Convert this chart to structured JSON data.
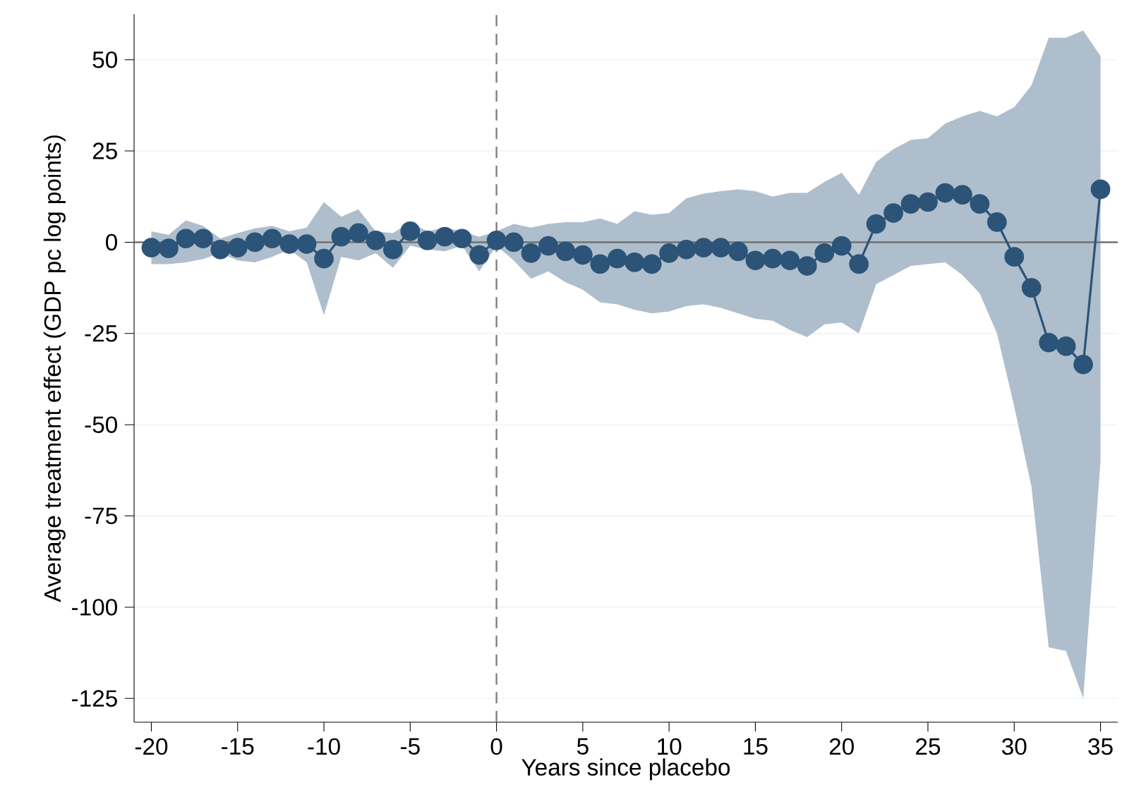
{
  "chart_data": {
    "type": "line",
    "xlabel": "Years since placebo",
    "ylabel": "Average treatment effect (GDP pc log points)",
    "xlim": [
      -21,
      36
    ],
    "ylim": [
      -131.5,
      62.5
    ],
    "xticks": [
      -20,
      -15,
      -10,
      -5,
      0,
      5,
      10,
      15,
      20,
      25,
      30,
      35
    ],
    "yticks": [
      50,
      25,
      0,
      -25,
      -50,
      -75,
      -100,
      -125
    ],
    "grid": "y",
    "marker": "circle",
    "line_style": "solid",
    "x": [
      -20,
      -19,
      -18,
      -17,
      -16,
      -15,
      -14,
      -13,
      -12,
      -11,
      -10,
      -9,
      -8,
      -7,
      -6,
      -5,
      -4,
      -3,
      -2,
      -1,
      0,
      1,
      2,
      3,
      4,
      5,
      6,
      7,
      8,
      9,
      10,
      11,
      12,
      13,
      14,
      15,
      16,
      17,
      18,
      19,
      20,
      21,
      22,
      23,
      24,
      25,
      26,
      27,
      28,
      29,
      30,
      31,
      32,
      33,
      34,
      35
    ],
    "series": [
      {
        "color": "#2c5478",
        "values": [
          -1.5,
          -1.7,
          1,
          1,
          -2,
          -1.5,
          0,
          1,
          -0.5,
          -0.5,
          -4.5,
          1.5,
          2.5,
          0.5,
          -2,
          3,
          0.5,
          1.5,
          1,
          -3.5,
          0.5,
          0,
          -3,
          -1,
          -2.5,
          -3.5,
          -6,
          -4.5,
          -5.5,
          -6,
          -3,
          -2,
          -1.5,
          -1.5,
          -2.5,
          -5,
          -4.5,
          -5,
          -6.5,
          -3,
          -1,
          -6,
          5,
          8,
          10.5,
          11,
          13.5,
          13,
          10.5,
          5.5,
          -4,
          -12.5,
          -27.5,
          -28.5,
          -33.5,
          14.5
        ],
        "upper": [
          3,
          2,
          6,
          4.5,
          1,
          2.5,
          3.8,
          4.5,
          3,
          4,
          11,
          7,
          9,
          3,
          2.5,
          5.5,
          3,
          4,
          3,
          1.5,
          3,
          5,
          4,
          5,
          5.5,
          5.5,
          6.5,
          5,
          8.5,
          7.5,
          8,
          12,
          13.3,
          14,
          14.5,
          14,
          12.5,
          13.5,
          13.5,
          16.5,
          19,
          13,
          22,
          25.5,
          28,
          28.5,
          32.5,
          34.5,
          36,
          34.5,
          37,
          43,
          56,
          56,
          58,
          51
        ],
        "lower": [
          -6,
          -6,
          -5.5,
          -4.6,
          -3,
          -5,
          -5.5,
          -4,
          -2,
          -5.5,
          -20,
          -4,
          -5,
          -3,
          -7,
          -1,
          -2,
          -2.5,
          -1,
          -8,
          -1,
          -5,
          -10,
          -8,
          -11,
          -13,
          -16.5,
          -17,
          -18.5,
          -19.5,
          -19,
          -17.5,
          -17,
          -18,
          -19.5,
          -21,
          -21.5,
          -24,
          -26,
          -22.5,
          -22,
          -25,
          -11.5,
          -9,
          -6.5,
          -6,
          -5.5,
          -9,
          -14,
          -25,
          -45,
          -67,
          -111,
          -112,
          -125,
          -60
        ]
      }
    ],
    "ref_lines": [
      {
        "axis": "y",
        "value": 0,
        "color": "#707070",
        "line_style": "solid"
      },
      {
        "axis": "x",
        "value": 0,
        "color": "#808080",
        "line_style": "dashed"
      }
    ]
  }
}
